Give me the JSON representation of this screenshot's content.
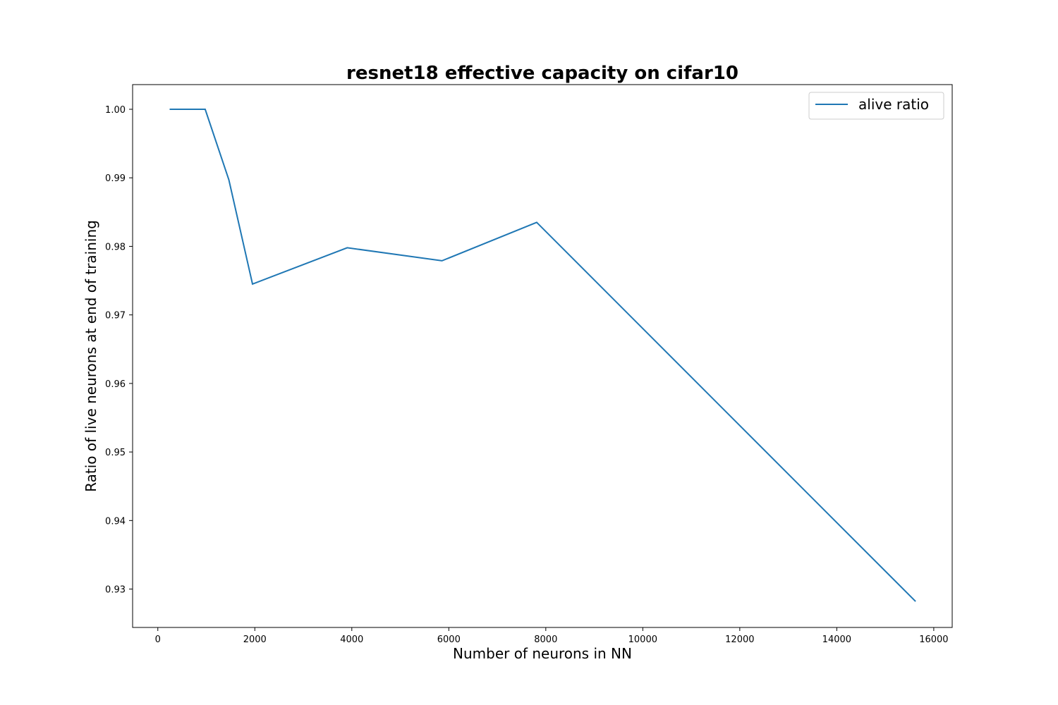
{
  "chart_data": {
    "type": "line",
    "title": "resnet18 effective capacity on cifar10",
    "xlabel": "Number of neurons in NN",
    "ylabel": "Ratio of live neurons at end of training",
    "xlim": [
      -520,
      16380
    ],
    "ylim": [
      0.9244,
      1.0036
    ],
    "xticks": [
      0,
      2000,
      4000,
      6000,
      8000,
      10000,
      12000,
      14000,
      16000
    ],
    "xtick_labels": [
      "0",
      "2000",
      "4000",
      "6000",
      "8000",
      "10000",
      "12000",
      "14000",
      "16000"
    ],
    "yticks": [
      0.93,
      0.94,
      0.95,
      0.96,
      0.97,
      0.98,
      0.99,
      1.0
    ],
    "ytick_labels": [
      "0.93",
      "0.94",
      "0.95",
      "0.96",
      "0.97",
      "0.98",
      "0.99",
      "1.00"
    ],
    "grid": false,
    "legend_position": "top-right",
    "series": [
      {
        "name": "alive ratio",
        "color": "#1f77b4",
        "x": [
          244,
          977,
          1465,
          1953,
          3906,
          5859,
          7812,
          15625
        ],
        "y": [
          1.0,
          1.0,
          0.9897,
          0.9745,
          0.9798,
          0.9779,
          0.9835,
          0.9282
        ]
      }
    ]
  }
}
